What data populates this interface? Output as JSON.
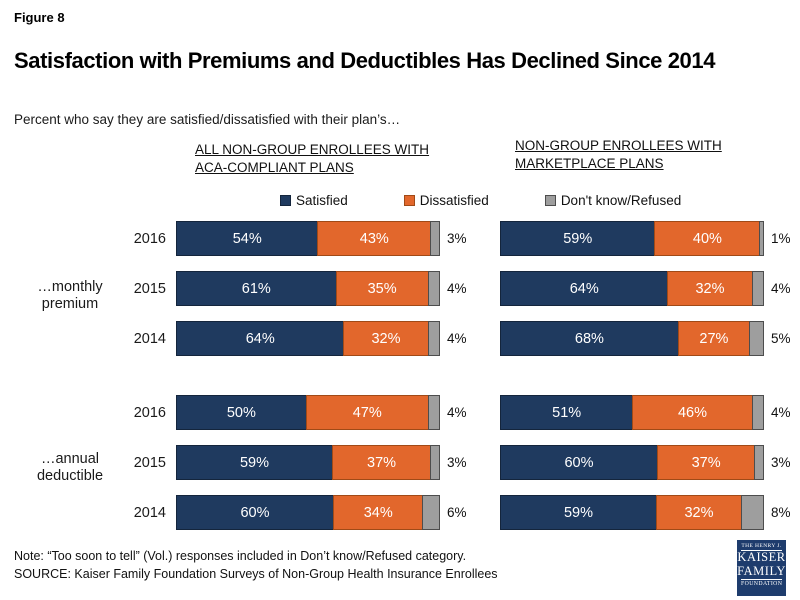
{
  "figure_label": "Figure 8",
  "title": "Satisfaction with Premiums and Deductibles Has Declined Since 2014",
  "subtitle": "Percent who say they are satisfied/dissatisfied with their plan’s…",
  "note": "Note: “Too soon to tell” (Vol.) responses included in Don’t know/Refused category.",
  "source": "SOURCE: Kaiser Family Foundation Surveys of Non-Group Health Insurance Enrollees",
  "logo": {
    "lines": [
      "THE HENRY J.",
      "KAISER",
      "FAMILY",
      "FOUNDATION"
    ]
  },
  "chart_data": {
    "type": "bar",
    "orientation": "horizontal-stacked",
    "value_unit": "%",
    "value_range": [
      0,
      100
    ],
    "legend_position": "top",
    "legend": [
      {
        "label": "Satisfied",
        "color": "#1F3A5F",
        "border": "#14253C"
      },
      {
        "label": "Dissatisfied",
        "color": "#E2672C",
        "border": "#A04A17"
      },
      {
        "label": "Don't know/Refused",
        "color": "#9E9E9E",
        "border": "#4D4D4D"
      }
    ],
    "series_keys": [
      "satisfied",
      "dissatisfied",
      "dont_know_refused"
    ],
    "row_groups": [
      {
        "label": "…monthly premium",
        "label_lines": [
          "…monthly",
          "premium"
        ]
      },
      {
        "label": "…annual deductible",
        "label_lines": [
          "…annual",
          "deductible"
        ]
      }
    ],
    "panels": [
      {
        "header": "ALL NON-GROUP ENROLLEES WITH ACA-COMPLIANT PLANS",
        "header_lines": [
          "ALL NON-GROUP ENROLLEES WITH",
          "ACA-COMPLIANT PLANS"
        ],
        "groups": [
          {
            "group": "…monthly premium",
            "rows": [
              {
                "year": "2016",
                "values": [
                  54,
                  43,
                  3
                ]
              },
              {
                "year": "2015",
                "values": [
                  61,
                  35,
                  4
                ]
              },
              {
                "year": "2014",
                "values": [
                  64,
                  32,
                  4
                ]
              }
            ]
          },
          {
            "group": "…annual deductible",
            "rows": [
              {
                "year": "2016",
                "values": [
                  50,
                  47,
                  4
                ]
              },
              {
                "year": "2015",
                "values": [
                  59,
                  37,
                  3
                ]
              },
              {
                "year": "2014",
                "values": [
                  60,
                  34,
                  6
                ]
              }
            ]
          }
        ]
      },
      {
        "header": "NON-GROUP ENROLLEES WITH MARKETPLACE PLANS",
        "header_lines": [
          "NON-GROUP ENROLLEES WITH",
          "MARKETPLACE PLANS"
        ],
        "groups": [
          {
            "group": "…monthly premium",
            "rows": [
              {
                "year": "2016",
                "values": [
                  59,
                  40,
                  1
                ]
              },
              {
                "year": "2015",
                "values": [
                  64,
                  32,
                  4
                ]
              },
              {
                "year": "2014",
                "values": [
                  68,
                  27,
                  5
                ]
              }
            ]
          },
          {
            "group": "…annual deductible",
            "rows": [
              {
                "year": "2016",
                "values": [
                  51,
                  46,
                  4
                ]
              },
              {
                "year": "2015",
                "values": [
                  60,
                  37,
                  3
                ]
              },
              {
                "year": "2014",
                "values": [
                  59,
                  32,
                  8
                ]
              }
            ]
          }
        ]
      }
    ]
  }
}
